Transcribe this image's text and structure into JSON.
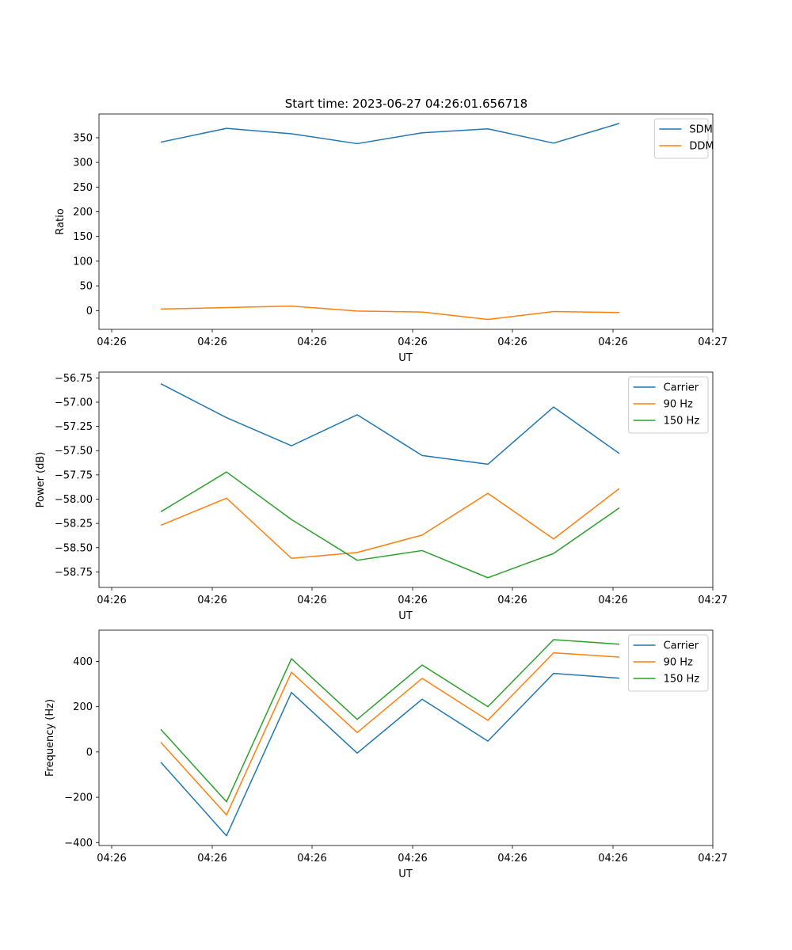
{
  "chart_data": [
    {
      "type": "line",
      "title": "Start time: 2023-06-27 04:26:01.656718",
      "xlabel": "UT",
      "ylabel": "Ratio",
      "x_tick_labels": [
        "04:26",
        "04:26",
        "04:26",
        "04:26",
        "04:26",
        "04:26",
        "04:26",
        "04:27"
      ],
      "y_ticks": [
        0,
        50,
        100,
        150,
        200,
        250,
        300,
        350
      ],
      "y_tick_labels": [
        "0",
        "50",
        "100",
        "150",
        "200",
        "250",
        "300",
        "350"
      ],
      "ylim": [
        -38,
        398
      ],
      "legend_position": "top-right",
      "series": [
        {
          "name": "SDM",
          "color": "#1f77b4",
          "values": [
            341,
            369,
            358,
            338,
            360,
            368,
            339,
            379
          ]
        },
        {
          "name": "DDM",
          "color": "#ff7f0e",
          "values": [
            3,
            6,
            9,
            -1,
            -3,
            -18,
            -2,
            -4
          ]
        }
      ]
    },
    {
      "type": "line",
      "title": "",
      "xlabel": "UT",
      "ylabel": "Power (dB)",
      "x_tick_labels": [
        "04:26",
        "04:26",
        "04:26",
        "04:26",
        "04:26",
        "04:26",
        "04:26",
        "04:27"
      ],
      "y_ticks": [
        -58.75,
        -58.5,
        -58.25,
        -58.0,
        -57.75,
        -57.5,
        -57.25,
        -57.0,
        -56.75
      ],
      "y_tick_labels": [
        "−58.75",
        "−58.50",
        "−58.25",
        "−58.00",
        "−57.75",
        "−57.50",
        "−57.25",
        "−57.00",
        "−56.75"
      ],
      "ylim": [
        -58.91,
        -56.69
      ],
      "legend_position": "top-right",
      "series": [
        {
          "name": "Carrier",
          "color": "#1f77b4",
          "values": [
            -56.81,
            -57.16,
            -57.45,
            -57.13,
            -57.55,
            -57.64,
            -57.05,
            -57.53
          ]
        },
        {
          "name": "90 Hz",
          "color": "#ff7f0e",
          "values": [
            -58.27,
            -57.99,
            -58.61,
            -58.55,
            -58.37,
            -57.94,
            -58.41,
            -57.89
          ]
        },
        {
          "name": "150 Hz",
          "color": "#2ca02c",
          "values": [
            -58.13,
            -57.72,
            -58.21,
            -58.63,
            -58.53,
            -58.81,
            -58.56,
            -58.09
          ]
        }
      ]
    },
    {
      "type": "line",
      "title": "",
      "xlabel": "UT",
      "ylabel": "Frequency (Hz)",
      "x_tick_labels": [
        "04:26",
        "04:26",
        "04:26",
        "04:26",
        "04:26",
        "04:26",
        "04:26",
        "04:27"
      ],
      "y_ticks": [
        -400,
        -200,
        0,
        200,
        400
      ],
      "y_tick_labels": [
        "−400",
        "−200",
        "0",
        "200",
        "400"
      ],
      "ylim": [
        -413,
        538
      ],
      "legend_position": "top-right",
      "series": [
        {
          "name": "Carrier",
          "color": "#1f77b4",
          "values": [
            -45,
            -370,
            263,
            -5,
            233,
            48,
            347,
            326
          ]
        },
        {
          "name": "90 Hz",
          "color": "#ff7f0e",
          "values": [
            43,
            -278,
            352,
            86,
            325,
            140,
            438,
            419
          ]
        },
        {
          "name": "150 Hz",
          "color": "#2ca02c",
          "values": [
            100,
            -220,
            412,
            144,
            384,
            200,
            496,
            476
          ]
        }
      ]
    }
  ]
}
